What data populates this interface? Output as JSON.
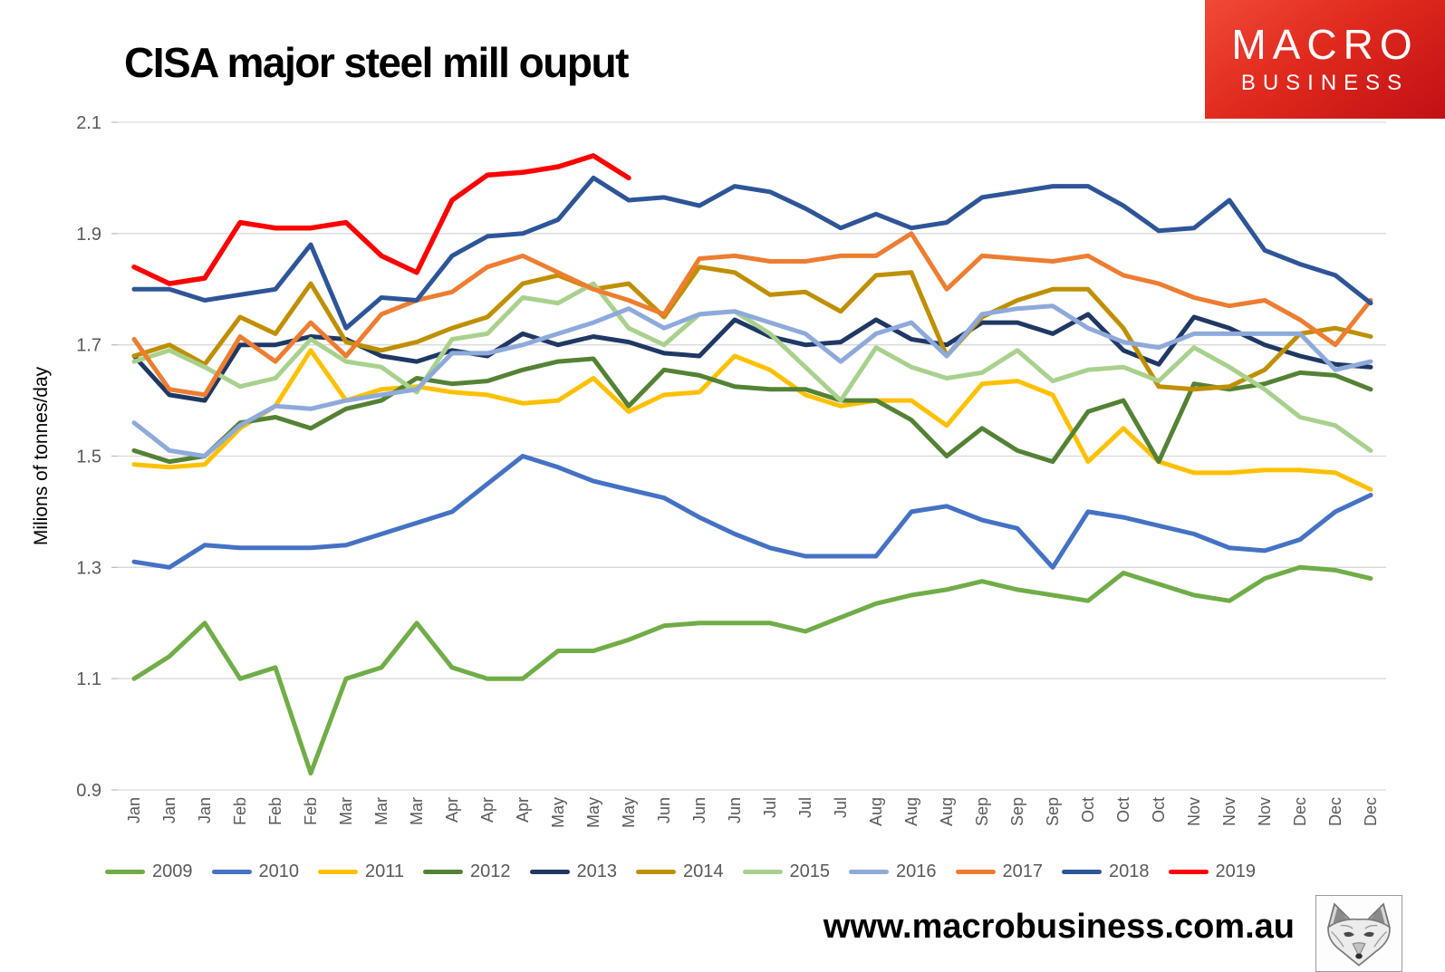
{
  "header": {
    "logo": {
      "line1": "MACRO",
      "line2": "BUSINESS"
    }
  },
  "footer": {
    "url": "www.macrobusiness.com.au"
  },
  "chart_data": {
    "type": "line",
    "title": "CISA major steel mill ouput",
    "ylabel": "Milions of tonnes/day",
    "xlabel": "",
    "ylim": [
      0.9,
      2.1
    ],
    "yticks": [
      0.9,
      1.1,
      1.3,
      1.5,
      1.7,
      1.9,
      2.1
    ],
    "grid": true,
    "legend_position": "bottom",
    "x_labels": [
      "Jan",
      "Jan",
      "Jan",
      "Feb",
      "Feb",
      "Feb",
      "Mar",
      "Mar",
      "Mar",
      "Apr",
      "Apr",
      "Apr",
      "May",
      "May",
      "May",
      "Jun",
      "Jun",
      "Jun",
      "Jul",
      "Jul",
      "Jul",
      "Aug",
      "Aug",
      "Aug",
      "Sep",
      "Sep",
      "Sep",
      "Oct",
      "Oct",
      "Oct",
      "Nov",
      "Nov",
      "Nov",
      "Dec",
      "Dec",
      "Dec"
    ],
    "series": [
      {
        "name": "2009",
        "color": "#70AD47",
        "values": [
          1.1,
          1.14,
          1.2,
          1.1,
          1.12,
          0.93,
          1.1,
          1.12,
          1.2,
          1.12,
          1.1,
          1.1,
          1.15,
          1.15,
          1.17,
          1.195,
          1.2,
          1.2,
          1.2,
          1.185,
          1.21,
          1.235,
          1.25,
          1.26,
          1.275,
          1.26,
          1.25,
          1.24,
          1.29,
          1.27,
          1.25,
          1.24,
          1.28,
          1.3,
          1.295,
          1.28
        ]
      },
      {
        "name": "2010",
        "color": "#4472C4",
        "values": [
          1.31,
          1.3,
          1.34,
          1.335,
          1.335,
          1.335,
          1.34,
          1.36,
          1.38,
          1.4,
          1.45,
          1.5,
          1.48,
          1.455,
          1.44,
          1.425,
          1.39,
          1.36,
          1.335,
          1.32,
          1.32,
          1.32,
          1.4,
          1.41,
          1.385,
          1.37,
          1.3,
          1.4,
          1.39,
          1.375,
          1.36,
          1.335,
          1.33,
          1.35,
          1.4,
          1.43
        ]
      },
      {
        "name": "2011",
        "color": "#FFC000",
        "values": [
          1.485,
          1.48,
          1.485,
          1.55,
          1.59,
          1.69,
          1.6,
          1.62,
          1.625,
          1.615,
          1.61,
          1.595,
          1.6,
          1.64,
          1.58,
          1.61,
          1.615,
          1.68,
          1.655,
          1.61,
          1.59,
          1.6,
          1.6,
          1.555,
          1.63,
          1.635,
          1.61,
          1.49,
          1.55,
          1.49,
          1.47,
          1.47,
          1.475,
          1.475,
          1.47,
          1.44
        ]
      },
      {
        "name": "2012",
        "color": "#548235",
        "values": [
          1.51,
          1.49,
          1.5,
          1.56,
          1.57,
          1.55,
          1.585,
          1.6,
          1.64,
          1.63,
          1.635,
          1.655,
          1.67,
          1.675,
          1.59,
          1.655,
          1.645,
          1.625,
          1.62,
          1.62,
          1.6,
          1.6,
          1.565,
          1.5,
          1.55,
          1.51,
          1.49,
          1.58,
          1.6,
          1.49,
          1.63,
          1.62,
          1.63,
          1.65,
          1.645,
          1.62
        ]
      },
      {
        "name": "2013",
        "color": "#1F3864",
        "values": [
          1.68,
          1.61,
          1.6,
          1.7,
          1.7,
          1.715,
          1.71,
          1.68,
          1.67,
          1.69,
          1.68,
          1.72,
          1.7,
          1.715,
          1.705,
          1.685,
          1.68,
          1.745,
          1.715,
          1.7,
          1.705,
          1.745,
          1.71,
          1.7,
          1.74,
          1.74,
          1.72,
          1.755,
          1.69,
          1.665,
          1.75,
          1.73,
          1.7,
          1.68,
          1.665,
          1.66
        ]
      },
      {
        "name": "2014",
        "color": "#BF8F00",
        "values": [
          1.68,
          1.7,
          1.665,
          1.75,
          1.72,
          1.81,
          1.705,
          1.69,
          1.705,
          1.73,
          1.75,
          1.81,
          1.825,
          1.8,
          1.81,
          1.75,
          1.84,
          1.83,
          1.79,
          1.795,
          1.76,
          1.825,
          1.83,
          1.68,
          1.75,
          1.78,
          1.8,
          1.8,
          1.73,
          1.625,
          1.62,
          1.625,
          1.655,
          1.72,
          1.73,
          1.715
        ]
      },
      {
        "name": "2015",
        "color": "#A9D18E",
        "values": [
          1.67,
          1.69,
          1.66,
          1.625,
          1.64,
          1.71,
          1.67,
          1.66,
          1.615,
          1.71,
          1.72,
          1.785,
          1.775,
          1.81,
          1.73,
          1.7,
          1.755,
          1.76,
          1.72,
          1.66,
          1.6,
          1.695,
          1.66,
          1.64,
          1.65,
          1.69,
          1.635,
          1.655,
          1.66,
          1.635,
          1.695,
          1.66,
          1.62,
          1.57,
          1.555,
          1.51
        ]
      },
      {
        "name": "2016",
        "color": "#8EAADB",
        "values": [
          1.56,
          1.51,
          1.5,
          1.555,
          1.59,
          1.585,
          1.6,
          1.61,
          1.62,
          1.685,
          1.685,
          1.7,
          1.72,
          1.74,
          1.765,
          1.73,
          1.755,
          1.76,
          1.74,
          1.72,
          1.67,
          1.72,
          1.74,
          1.68,
          1.755,
          1.765,
          1.77,
          1.73,
          1.705,
          1.695,
          1.72,
          1.72,
          1.72,
          1.72,
          1.655,
          1.67
        ]
      },
      {
        "name": "2017",
        "color": "#ED7D31",
        "values": [
          1.71,
          1.62,
          1.61,
          1.715,
          1.67,
          1.74,
          1.68,
          1.755,
          1.78,
          1.795,
          1.84,
          1.86,
          1.83,
          1.8,
          1.78,
          1.755,
          1.855,
          1.86,
          1.85,
          1.85,
          1.86,
          1.86,
          1.9,
          1.8,
          1.86,
          1.855,
          1.85,
          1.86,
          1.825,
          1.81,
          1.785,
          1.77,
          1.78,
          1.745,
          1.7,
          1.78
        ]
      },
      {
        "name": "2018",
        "color": "#2E5597",
        "values": [
          1.8,
          1.8,
          1.78,
          1.79,
          1.8,
          1.88,
          1.73,
          1.785,
          1.78,
          1.86,
          1.895,
          1.9,
          1.925,
          2.0,
          1.96,
          1.965,
          1.95,
          1.985,
          1.975,
          1.945,
          1.91,
          1.935,
          1.91,
          1.92,
          1.965,
          1.975,
          1.985,
          1.985,
          1.95,
          1.905,
          1.91,
          1.96,
          1.87,
          1.845,
          1.825,
          1.775
        ]
      },
      {
        "name": "2019",
        "color": "#FF0000",
        "values": [
          1.84,
          1.81,
          1.82,
          1.92,
          1.91,
          1.91,
          1.92,
          1.86,
          1.83,
          1.96,
          2.005,
          2.01,
          2.02,
          2.04,
          2.0
        ]
      }
    ]
  }
}
